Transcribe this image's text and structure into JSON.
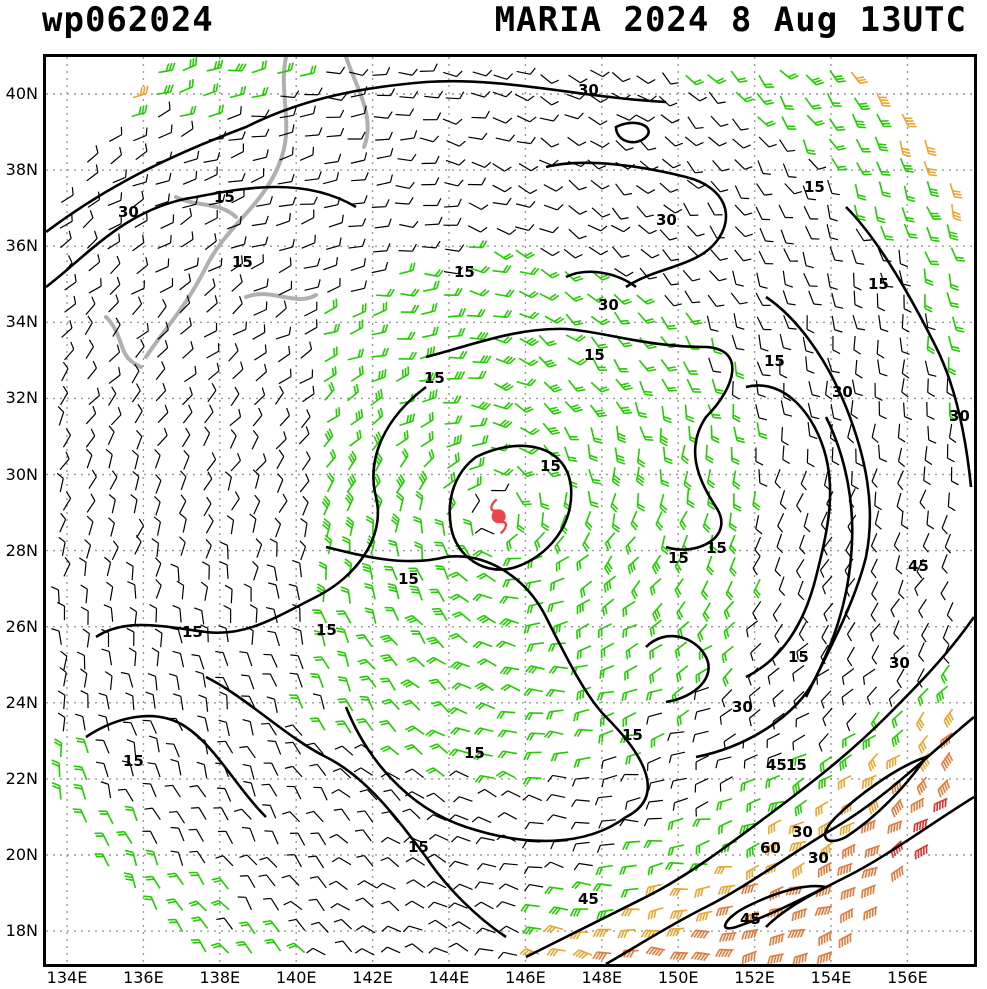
{
  "header": {
    "storm_id": "wp062024",
    "storm_title": "MARIA 2024   8 Aug 13UTC"
  },
  "map": {
    "lat_labels": [
      "40N",
      "38N",
      "36N",
      "34N",
      "32N",
      "30N",
      "28N",
      "26N",
      "24N",
      "22N",
      "20N",
      "18N"
    ],
    "lon_labels": [
      "134E",
      "136E",
      "138E",
      "140E",
      "142E",
      "144E",
      "146E",
      "148E",
      "150E",
      "152E",
      "154E",
      "156E"
    ],
    "contour_labels": [
      "15",
      "30",
      "45",
      "60"
    ],
    "colors": {
      "calm_barb": "#000000",
      "barb_15": "#22cc00",
      "barb_30": "#e8a630",
      "barb_45": "#e07a3a",
      "barb_60": "#e03030",
      "coast": "#b0b0b0",
      "grid": "#999999",
      "storm_marker": "#ee4444"
    },
    "storm_center": {
      "lat": 28.9,
      "lon": 145.3
    }
  }
}
